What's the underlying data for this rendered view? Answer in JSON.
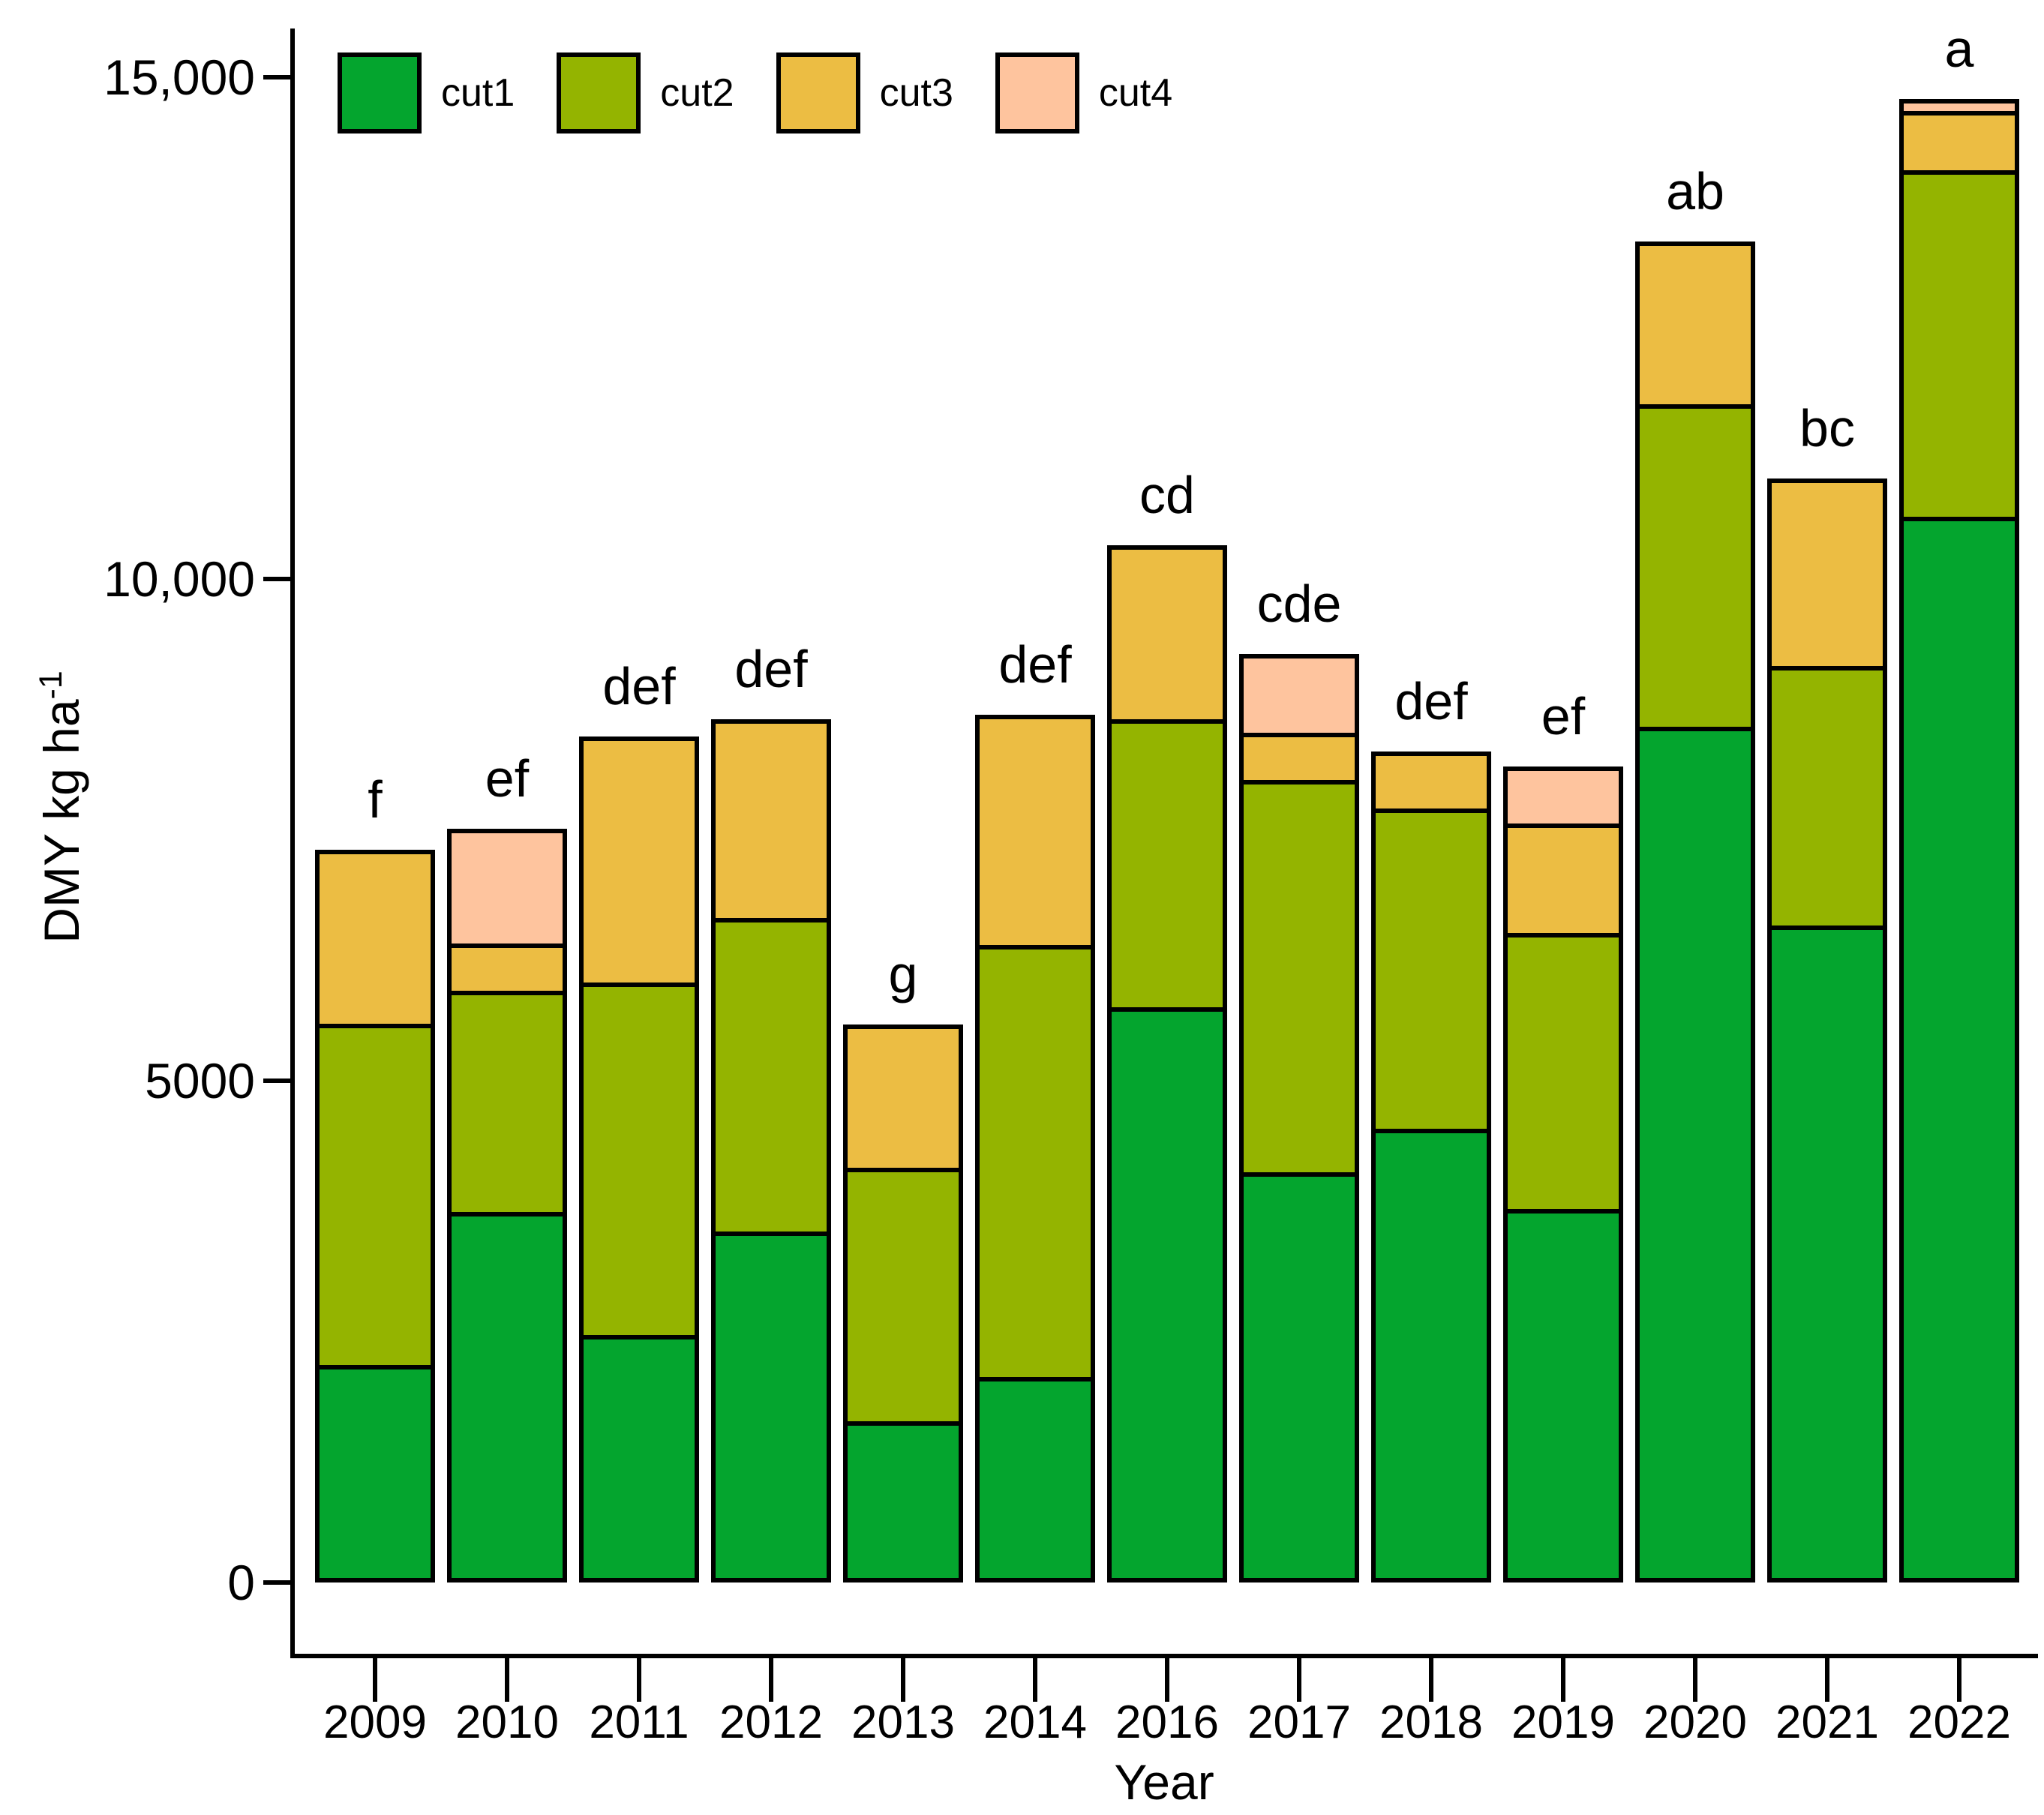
{
  "chart_data": {
    "type": "bar",
    "stacked": true,
    "xlabel": "Year",
    "ylabel": "DMY kg ha⁻¹",
    "ylabel_base": "DMY kg ha",
    "ylabel_superscript": "-1",
    "categories": [
      "2009",
      "2010",
      "2011",
      "2012",
      "2013",
      "2014",
      "2016",
      "2017",
      "2018",
      "2019",
      "2020",
      "2021",
      "2022"
    ],
    "series": [
      {
        "name": "cut1",
        "color": "#04a52e",
        "values": [
          2170,
          3690,
          2470,
          3500,
          1610,
          2050,
          5730,
          4090,
          4520,
          3720,
          8530,
          6550,
          10620
        ]
      },
      {
        "name": "cut2",
        "color": "#94b400",
        "values": [
          3400,
          2210,
          3510,
          3120,
          2520,
          4300,
          2870,
          3910,
          3190,
          2750,
          3210,
          2580,
          3450
        ]
      },
      {
        "name": "cut3",
        "color": "#ecbd43",
        "values": [
          1730,
          470,
          2450,
          1980,
          1430,
          2300,
          1740,
          470,
          570,
          1090,
          1620,
          1870,
          590
        ]
      },
      {
        "name": "cut4",
        "color": "#fec49e",
        "values": [
          0,
          1140,
          0,
          0,
          0,
          0,
          0,
          780,
          0,
          570,
          0,
          0,
          120
        ]
      }
    ],
    "totals": [
      7300,
      7510,
      8430,
      8600,
      5560,
      8650,
      10340,
      9250,
      8280,
      8130,
      13360,
      11000,
      14780
    ],
    "significance_letters": [
      "f",
      "ef",
      "def",
      "def",
      "g",
      "def",
      "cd",
      "cde",
      "def",
      "ef",
      "ab",
      "bc",
      "a"
    ],
    "stack_order_bottom_to_top": [
      "cut1",
      "cut2",
      "cut3",
      "cut4"
    ],
    "yticks": [
      {
        "value": 0,
        "label": "0"
      },
      {
        "value": 5000,
        "label": "5000"
      },
      {
        "value": 10000,
        "label": "10,000"
      },
      {
        "value": 15000,
        "label": "15,000"
      }
    ],
    "ylim": [
      0,
      15500
    ],
    "grid": false,
    "legend_position": "top-left",
    "bar_outline_color": "#000000",
    "background_color": "#ffffff"
  },
  "legend": {
    "items": [
      {
        "label": "cut1",
        "color": "#04a52e"
      },
      {
        "label": "cut2",
        "color": "#94b400"
      },
      {
        "label": "cut3",
        "color": "#ecbd43"
      },
      {
        "label": "cut4",
        "color": "#fec49e"
      }
    ]
  }
}
